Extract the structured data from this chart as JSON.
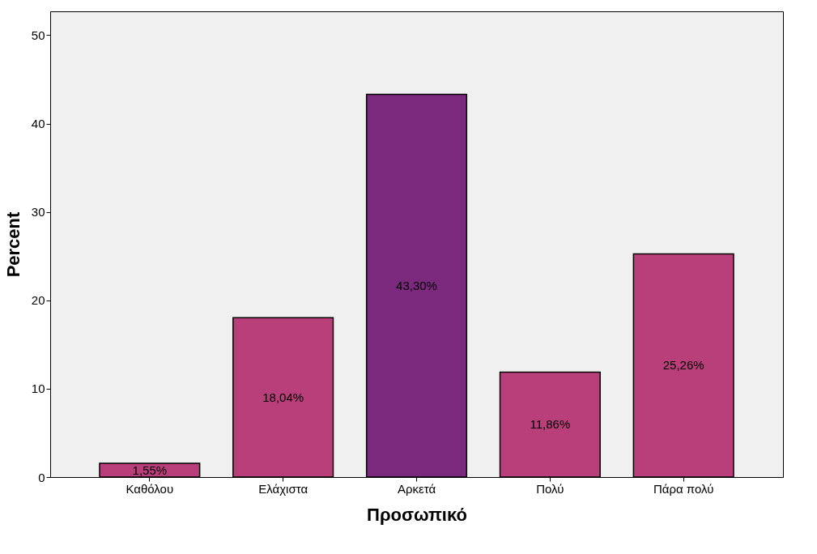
{
  "chart_data": {
    "type": "bar",
    "xlabel": "Προσωπικό",
    "ylabel": "Percent",
    "categories": [
      "Καθόλου",
      "Ελάχιστα",
      "Αρκετά",
      "Πολύ",
      "Πάρα πολύ"
    ],
    "values": [
      1.55,
      18.04,
      43.3,
      11.86,
      25.26
    ],
    "value_labels": [
      "1,55%",
      "18,04%",
      "43,30%",
      "11,86%",
      "25,26%"
    ],
    "colors": [
      "#b83f7a",
      "#b83f7a",
      "#7b297c",
      "#b83f7a",
      "#b83f7a"
    ],
    "ylim": [
      0,
      52.7
    ],
    "yticks": [
      0,
      10,
      20,
      30,
      40,
      50
    ],
    "grid": false
  }
}
